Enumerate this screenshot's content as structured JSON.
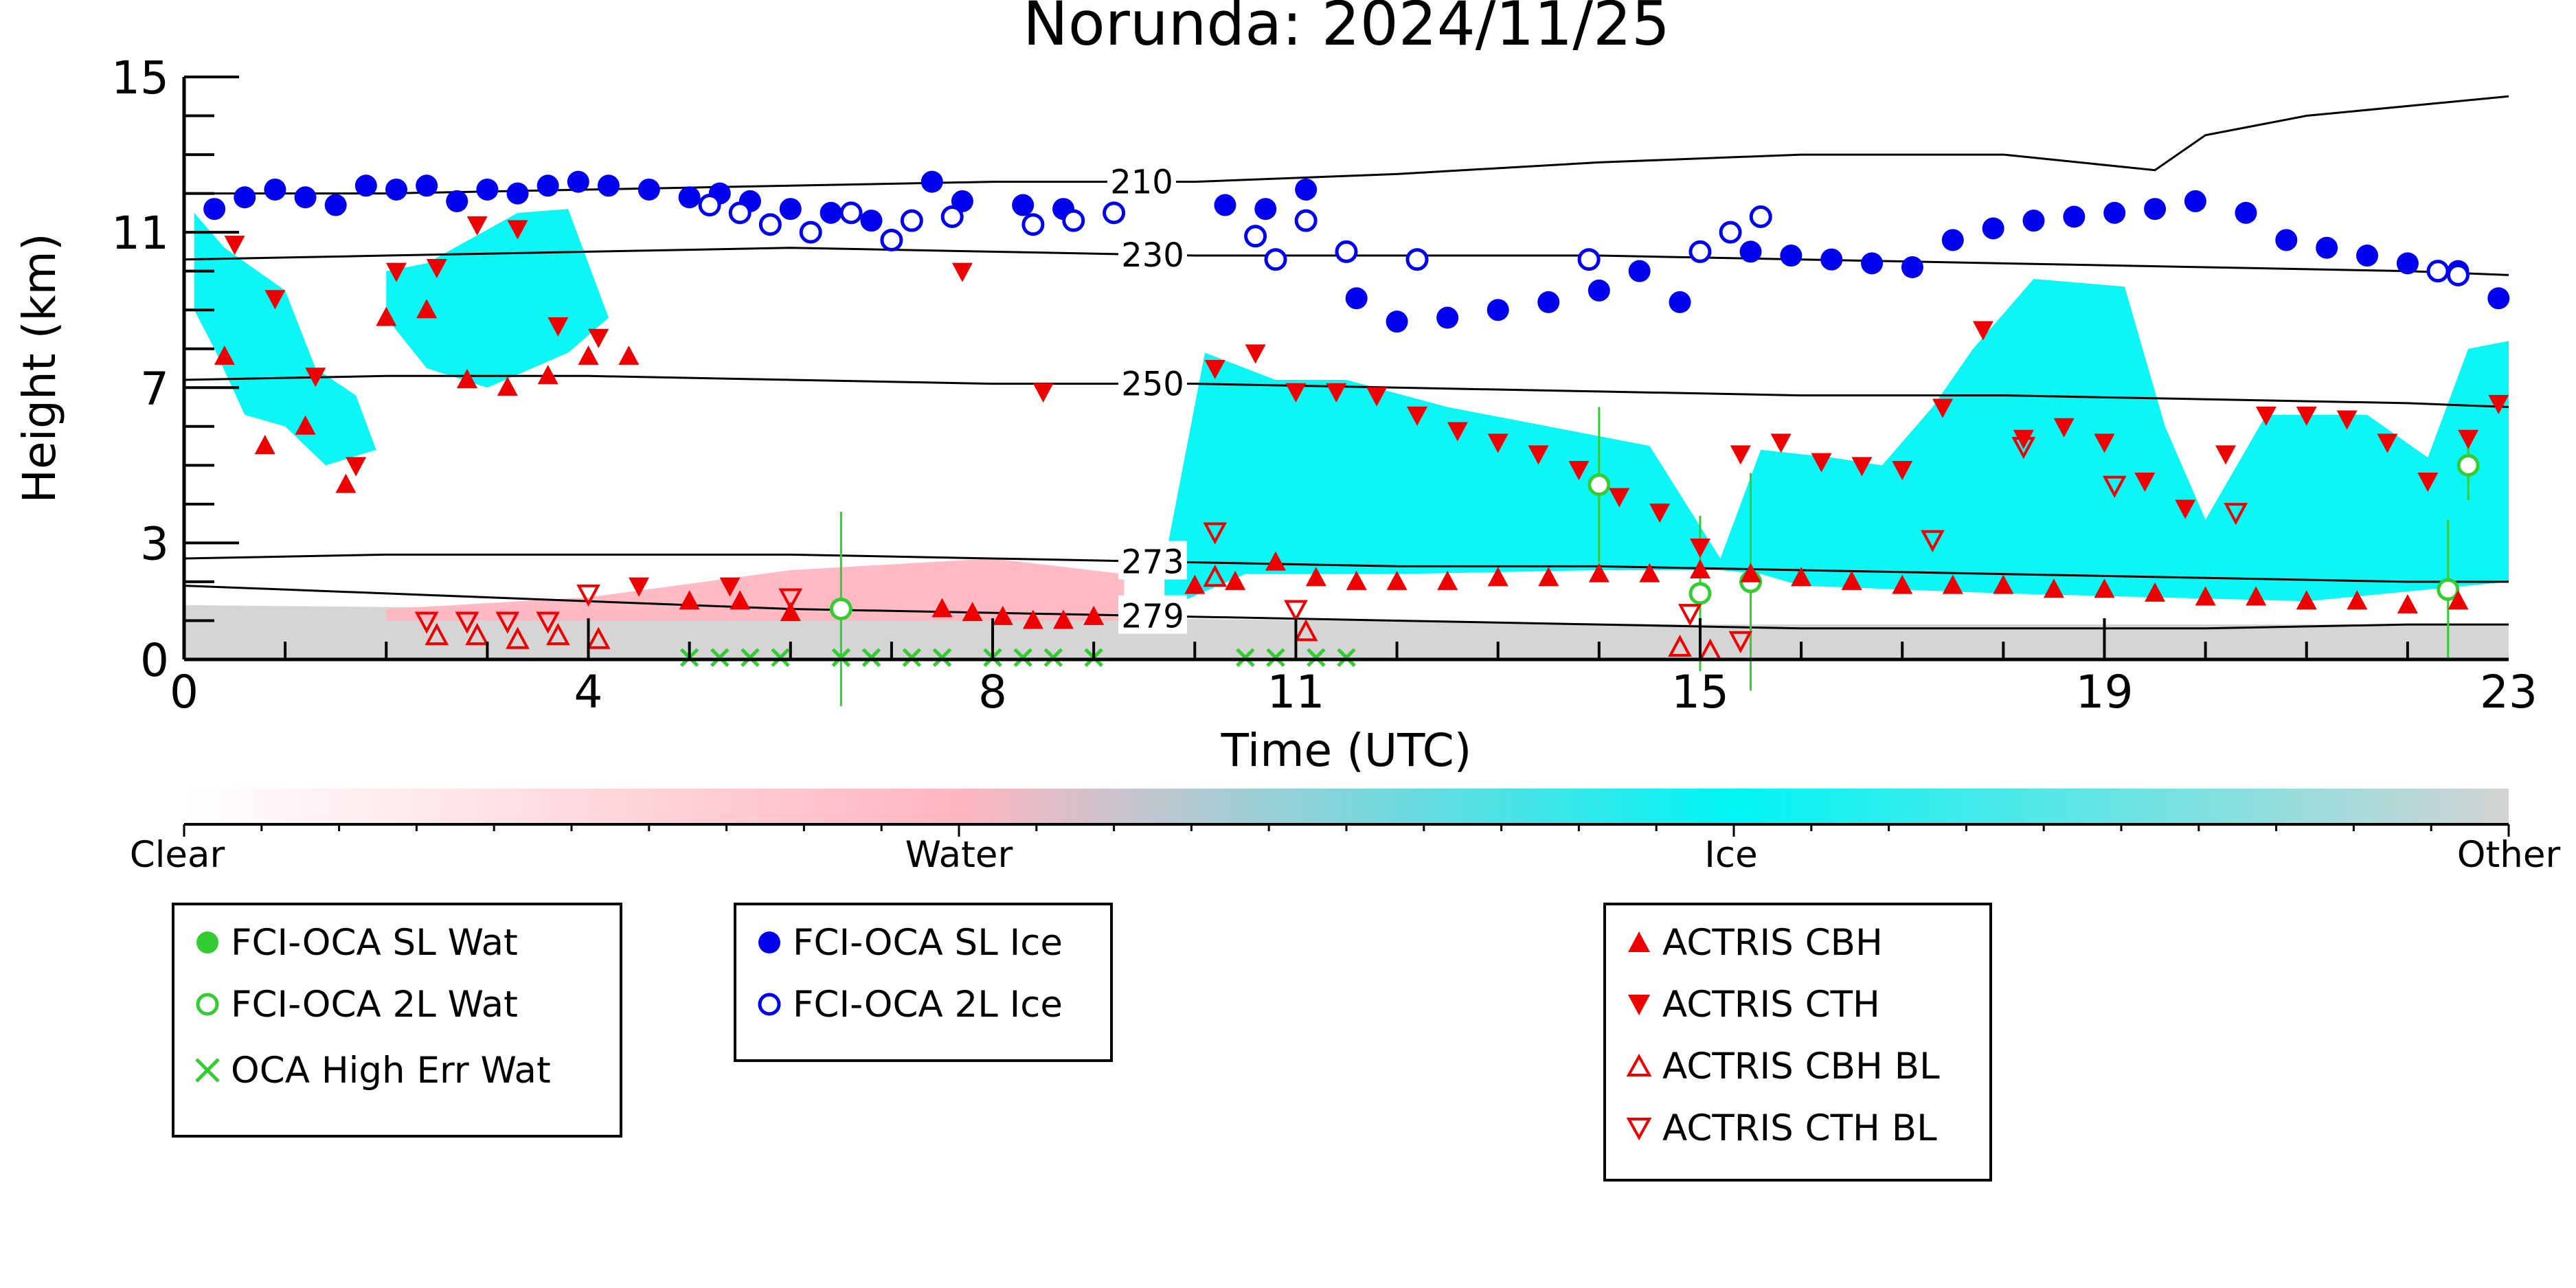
{
  "chart_data": {
    "type": "scatter",
    "title": "Norunda: 2024/11/25",
    "xlabel": "Time (UTC)",
    "ylabel": "Height (km)",
    "xlim": [
      0,
      23
    ],
    "ylim": [
      0,
      15
    ],
    "x_ticks": [
      "0",
      "4",
      "8",
      "11",
      "15",
      "19",
      "23"
    ],
    "y_ticks": [
      "0",
      "3",
      "7",
      "11",
      "15"
    ],
    "background": {
      "description": "cloud phase classification field",
      "colorbar": {
        "labels": [
          "Clear",
          "Water",
          "Ice",
          "Other"
        ],
        "colors": [
          "#ffffff",
          "#ffb6c1",
          "#00f5f5",
          "#d3d3d3"
        ]
      }
    },
    "contours": [
      {
        "label": "210",
        "x": [
          0,
          2,
          4,
          6,
          8,
          9,
          10,
          11,
          12,
          14,
          16,
          18,
          19.5,
          20,
          21,
          23
        ],
        "y": [
          12.0,
          12.0,
          12.1,
          12.2,
          12.3,
          12.3,
          12.3,
          12.4,
          12.5,
          12.8,
          13.0,
          13.0,
          12.6,
          13.5,
          14.0,
          14.5
        ]
      },
      {
        "label": "230",
        "x": [
          0,
          2,
          4,
          6,
          8,
          10,
          12,
          14,
          16,
          18,
          20,
          22,
          23
        ],
        "y": [
          10.3,
          10.4,
          10.5,
          10.6,
          10.5,
          10.4,
          10.4,
          10.4,
          10.3,
          10.2,
          10.1,
          10.0,
          9.9
        ]
      },
      {
        "label": "250",
        "x": [
          0,
          2,
          4,
          6,
          8,
          10,
          12,
          14,
          16,
          18,
          20,
          22,
          23
        ],
        "y": [
          7.2,
          7.3,
          7.3,
          7.2,
          7.1,
          7.1,
          7.0,
          6.9,
          6.8,
          6.8,
          6.7,
          6.6,
          6.5
        ]
      },
      {
        "label": "273",
        "x": [
          0,
          2,
          4,
          6,
          8,
          10,
          12,
          14,
          16,
          18,
          20,
          22,
          23
        ],
        "y": [
          2.6,
          2.7,
          2.7,
          2.7,
          2.6,
          2.5,
          2.4,
          2.4,
          2.3,
          2.2,
          2.1,
          2.0,
          2.0
        ]
      },
      {
        "label": "279",
        "x": [
          0,
          2,
          4,
          6,
          8,
          10,
          12,
          14,
          16,
          18,
          20,
          22,
          23
        ],
        "y": [
          1.9,
          1.7,
          1.5,
          1.3,
          1.2,
          1.1,
          1.0,
          0.9,
          0.8,
          0.8,
          0.8,
          0.9,
          0.9
        ]
      }
    ],
    "series": [
      {
        "name": "FCI-OCA SL Wat",
        "marker": "circle-filled",
        "color": "#33cc33",
        "x": [],
        "y": []
      },
      {
        "name": "FCI-OCA 2L Wat",
        "marker": "circle-open",
        "color": "#33cc33",
        "x": [
          6.5,
          14.0,
          15.0,
          15.5,
          22.4,
          22.6
        ],
        "y": [
          1.3,
          4.5,
          1.7,
          2.0,
          1.8,
          5.0
        ],
        "yerr": [
          2.5,
          2.0,
          2.0,
          2.8,
          1.8,
          0.9
        ]
      },
      {
        "name": "OCA High Err Wat",
        "marker": "x",
        "color": "#33cc33",
        "x": [
          5.0,
          5.3,
          5.6,
          5.9,
          6.5,
          6.8,
          7.2,
          7.5,
          8.0,
          8.3,
          8.6,
          9.0,
          10.5,
          10.8,
          11.2,
          11.5
        ],
        "y": [
          0.05,
          0.05,
          0.05,
          0.05,
          0.05,
          0.05,
          0.05,
          0.05,
          0.05,
          0.05,
          0.05,
          0.05,
          0.05,
          0.05,
          0.05,
          0.05
        ]
      },
      {
        "name": "FCI-OCA SL Ice",
        "marker": "circle-filled",
        "color": "#0000ee",
        "x": [
          0.3,
          0.6,
          0.9,
          1.2,
          1.5,
          1.8,
          2.1,
          2.4,
          2.7,
          3.0,
          3.3,
          3.6,
          3.9,
          4.2,
          4.6,
          5.0,
          5.3,
          5.6,
          6.0,
          6.4,
          6.8,
          7.4,
          7.7,
          8.3,
          8.7,
          10.3,
          10.7,
          11.1,
          11.6,
          12.0,
          12.5,
          13.0,
          13.5,
          14.0,
          14.4,
          14.8,
          15.5,
          15.9,
          16.3,
          16.7,
          17.1,
          17.5,
          17.9,
          18.3,
          18.7,
          19.1,
          19.5,
          19.9,
          20.4,
          20.8,
          21.2,
          21.6,
          22.0,
          22.5,
          22.9
        ],
        "y": [
          11.6,
          11.9,
          12.1,
          11.9,
          11.7,
          12.2,
          12.1,
          12.2,
          11.8,
          12.1,
          12.0,
          12.2,
          12.3,
          12.2,
          12.1,
          11.9,
          12.0,
          11.8,
          11.6,
          11.5,
          11.3,
          12.3,
          11.8,
          11.7,
          11.6,
          11.7,
          11.6,
          12.1,
          9.3,
          8.7,
          8.8,
          9.0,
          9.2,
          9.5,
          10.0,
          9.2,
          10.5,
          10.4,
          10.3,
          10.2,
          10.1,
          10.8,
          11.1,
          11.3,
          11.4,
          11.5,
          11.6,
          11.8,
          11.5,
          10.8,
          10.6,
          10.4,
          10.2,
          10.0,
          9.3
        ]
      },
      {
        "name": "FCI-OCA 2L Ice",
        "marker": "circle-open",
        "color": "#0000ee",
        "x": [
          5.2,
          5.5,
          5.8,
          6.2,
          6.6,
          7.0,
          7.2,
          7.6,
          8.4,
          8.8,
          9.2,
          10.6,
          10.8,
          11.1,
          11.5,
          12.2,
          13.9,
          15.0,
          15.3,
          15.6,
          22.3,
          22.5
        ],
        "y": [
          11.7,
          11.5,
          11.2,
          11.0,
          11.5,
          10.8,
          11.3,
          11.4,
          11.2,
          11.3,
          11.5,
          10.9,
          10.3,
          11.3,
          10.5,
          10.3,
          10.3,
          10.5,
          11.0,
          11.4,
          10.0,
          9.9
        ]
      },
      {
        "name": "ACTRIS CBH",
        "marker": "triangle-up-filled",
        "color": "#ee0000",
        "x": [
          0.4,
          0.8,
          1.2,
          1.6,
          2.0,
          2.4,
          2.8,
          3.2,
          3.6,
          4.0,
          4.4,
          5.0,
          5.5,
          6.0,
          7.5,
          7.8,
          8.1,
          8.4,
          8.7,
          9.0,
          10.0,
          10.4,
          10.8,
          11.2,
          11.6,
          12.0,
          12.5,
          13.0,
          13.5,
          14.0,
          14.5,
          15.0,
          15.5,
          16.0,
          16.5,
          17.0,
          17.5,
          18.0,
          18.5,
          19.0,
          19.5,
          20.0,
          20.5,
          21.0,
          21.5,
          22.0,
          22.5
        ],
        "y": [
          7.8,
          5.5,
          6.0,
          4.5,
          8.8,
          9.0,
          7.2,
          7.0,
          7.3,
          7.8,
          7.8,
          1.5,
          1.5,
          1.2,
          1.3,
          1.2,
          1.1,
          1.0,
          1.0,
          1.1,
          1.9,
          2.0,
          2.5,
          2.1,
          2.0,
          2.0,
          2.0,
          2.1,
          2.1,
          2.2,
          2.2,
          2.3,
          2.2,
          2.1,
          2.0,
          1.9,
          1.9,
          1.9,
          1.8,
          1.8,
          1.7,
          1.6,
          1.6,
          1.5,
          1.5,
          1.4,
          1.5
        ]
      },
      {
        "name": "ACTRIS CTH",
        "marker": "triangle-down-filled",
        "color": "#ee0000",
        "x": [
          0.5,
          0.9,
          1.3,
          1.7,
          2.1,
          2.5,
          2.9,
          3.3,
          3.7,
          4.1,
          4.5,
          5.4,
          7.7,
          8.5,
          10.2,
          10.6,
          11.0,
          11.4,
          11.8,
          12.2,
          12.6,
          13.0,
          13.4,
          13.8,
          14.2,
          14.6,
          15.0,
          15.4,
          15.8,
          16.2,
          16.6,
          17.0,
          17.4,
          17.8,
          18.2,
          18.6,
          19.0,
          19.4,
          19.8,
          20.2,
          20.6,
          21.0,
          21.4,
          21.8,
          22.2,
          22.6,
          22.9
        ],
        "y": [
          10.7,
          9.3,
          7.3,
          5.0,
          10.0,
          10.1,
          11.2,
          11.1,
          8.6,
          8.3,
          1.9,
          1.9,
          10.0,
          6.9,
          7.5,
          7.9,
          6.9,
          6.9,
          6.8,
          6.3,
          5.9,
          5.6,
          5.3,
          4.9,
          4.2,
          3.8,
          2.9,
          5.3,
          5.6,
          5.1,
          5.0,
          4.9,
          6.5,
          8.5,
          5.7,
          6.0,
          5.6,
          4.6,
          3.9,
          5.3,
          6.3,
          6.3,
          6.2,
          5.6,
          4.6,
          5.7,
          6.6
        ]
      },
      {
        "name": "ACTRIS CBH BL",
        "marker": "triangle-up-open",
        "color": "#ee0000",
        "x": [
          2.5,
          2.9,
          3.3,
          3.7,
          4.1,
          10.2,
          11.1,
          14.8,
          15.1
        ],
        "y": [
          0.6,
          0.6,
          0.5,
          0.6,
          0.5,
          2.1,
          0.7,
          0.3,
          0.2
        ]
      },
      {
        "name": "ACTRIS CTH BL",
        "marker": "triangle-down-open",
        "color": "#ee0000",
        "x": [
          2.4,
          2.8,
          3.2,
          3.6,
          4.0,
          6.0,
          10.2,
          11.0,
          14.9,
          15.4,
          17.3,
          18.2,
          19.1,
          20.3
        ],
        "y": [
          1.0,
          1.0,
          1.0,
          1.0,
          1.7,
          1.6,
          3.3,
          1.3,
          1.2,
          0.5,
          3.1,
          5.5,
          4.5,
          3.8
        ]
      }
    ],
    "legend_placement": "below"
  }
}
